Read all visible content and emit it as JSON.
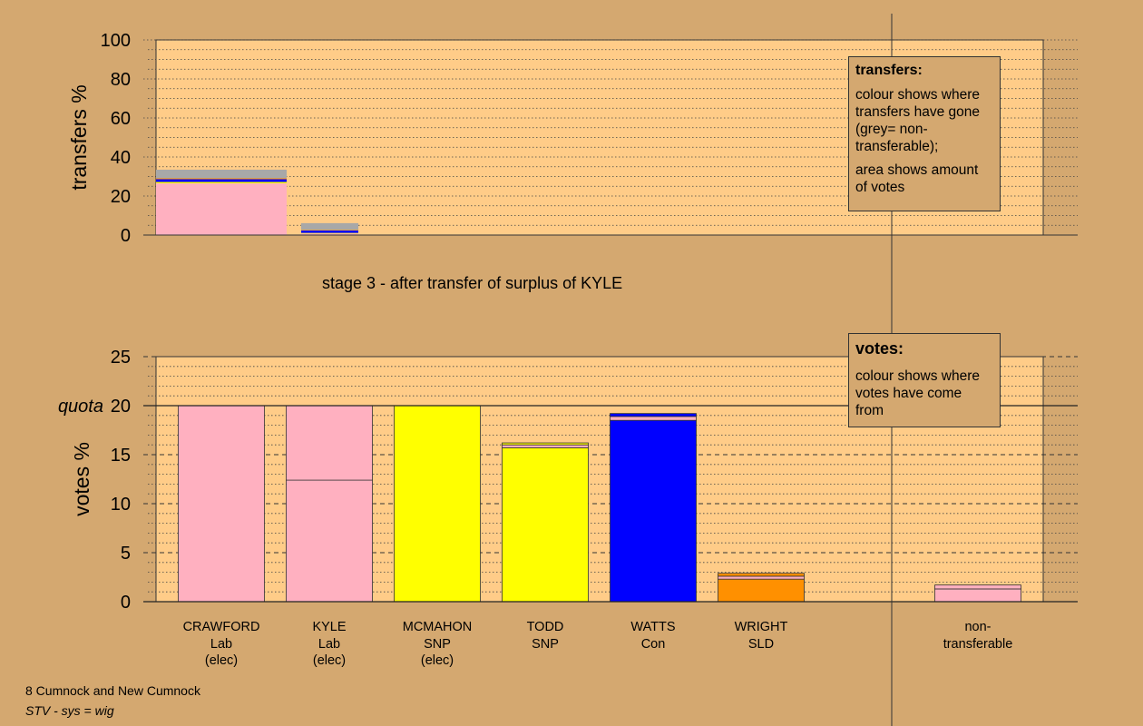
{
  "stage_title": "stage 3 - after transfer of surplus of KYLE",
  "notes": {
    "transfers": {
      "heading": "transfers:",
      "para1": "colour shows where transfers have gone (grey= non-transferable);",
      "para2": "area shows amount of votes"
    },
    "votes": {
      "heading": "votes:",
      "para1": "colour shows where votes have come from"
    }
  },
  "footer": {
    "line1": "8 Cumnock and New Cumnock",
    "line2": "STV - sys = wig"
  },
  "colors": {
    "background": "#D4A870",
    "plot_area": "#FFCC88",
    "Lab": "#FFB0C0",
    "SNP": "#FFFF00",
    "Con": "#0000FF",
    "SLD": "#FF9000",
    "non_transferable": "#A8A8A8"
  },
  "chart_data": [
    {
      "type": "bar",
      "name_printed": "",
      "ylabel": "transfers %",
      "ylim": [
        0,
        100
      ],
      "yticks": [
        0,
        20,
        40,
        60,
        80,
        100
      ],
      "bars": [
        {
          "segments": [
            {
              "party": "Lab",
              "value": 26.5
            },
            {
              "party": "SNP",
              "value": 0.7
            },
            {
              "party": "Con",
              "value": 1.4
            },
            {
              "party": "SLD",
              "value": 0.5
            },
            {
              "party": "non_transferable",
              "value": 4.4
            }
          ]
        },
        {
          "segments": [
            {
              "party": "Lab",
              "value": 0.8
            },
            {
              "party": "SNP",
              "value": 0.3
            },
            {
              "party": "Con",
              "value": 1.2
            },
            {
              "party": "SLD",
              "value": 0.3
            },
            {
              "party": "non_transferable",
              "value": 3.5
            }
          ]
        }
      ]
    },
    {
      "type": "bar",
      "ylabel": "votes %",
      "ylim": [
        0,
        25
      ],
      "yticks": [
        0,
        5,
        10,
        15,
        20,
        25
      ],
      "quota": {
        "label": "quota",
        "value": 20
      },
      "categories": [
        {
          "name": "CRAWFORD",
          "party": "Lab",
          "status": "(elec)"
        },
        {
          "name": "KYLE",
          "party": "Lab",
          "status": "(elec)"
        },
        {
          "name": "MCMAHON",
          "party": "SNP",
          "status": "(elec)"
        },
        {
          "name": "TODD",
          "party": "SNP",
          "status": ""
        },
        {
          "name": "WATTS",
          "party": "Con",
          "status": ""
        },
        {
          "name": "WRIGHT",
          "party": "SLD",
          "status": ""
        },
        {
          "name": "non-transferable",
          "party": "",
          "status": ""
        }
      ],
      "bars": [
        {
          "segments": [
            {
              "party": "Lab",
              "value": 20.0
            }
          ]
        },
        {
          "segments": [
            {
              "party": "Lab",
              "value": 12.4
            },
            {
              "party": "Lab",
              "value": 7.6
            }
          ]
        },
        {
          "segments": [
            {
              "party": "SNP",
              "value": 20.0
            }
          ]
        },
        {
          "segments": [
            {
              "party": "SNP",
              "value": 15.7
            },
            {
              "party": "Lab",
              "value": 0.3
            },
            {
              "party": "SNP",
              "value": 0.2
            }
          ]
        },
        {
          "segments": [
            {
              "party": "Con",
              "value": 18.5
            },
            {
              "party": "Lab",
              "value": 0.4
            },
            {
              "party": "Con",
              "value": 0.3
            }
          ]
        },
        {
          "segments": [
            {
              "party": "SLD",
              "value": 2.3
            },
            {
              "party": "Lab",
              "value": 0.3
            },
            {
              "party": "SLD",
              "value": 0.3
            }
          ]
        },
        {
          "segments": [
            {
              "party": "Lab",
              "value": 1.3
            },
            {
              "party": "Lab",
              "value": 0.4
            }
          ]
        }
      ]
    }
  ]
}
